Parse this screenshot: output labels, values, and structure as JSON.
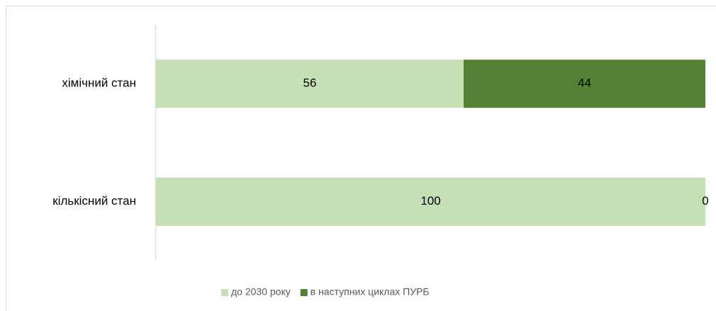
{
  "chart_data": {
    "type": "stacked_barh",
    "categories": [
      "хімічний стан",
      "кількісний стан"
    ],
    "series": [
      {
        "name": "до 2030 року",
        "color": "#c5e0b4",
        "values": [
          56,
          100
        ]
      },
      {
        "name": "в наступних циклах ПУРБ",
        "color": "#548235",
        "values": [
          44,
          0
        ]
      }
    ],
    "xlim": [
      0,
      100
    ],
    "legend": "bottom"
  }
}
